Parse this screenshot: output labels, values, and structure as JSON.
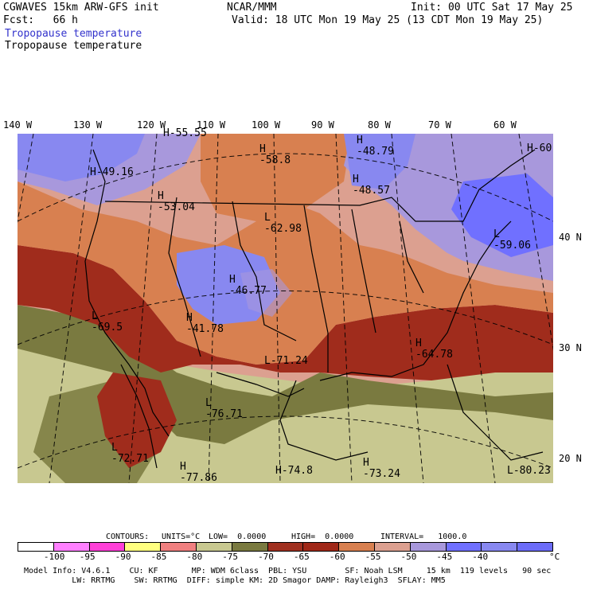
{
  "header": {
    "model": "CGWAVES 15km ARW-GFS init",
    "fcst": "Fcst:   66 h",
    "source": "NCAR/MMM",
    "init": "Init: 00 UTC Sat 17 May 25",
    "valid": "Valid: 18 UTC Mon 19 May 25 (13 CDT Mon 19 May 25)",
    "field_title_1": "Tropopause temperature",
    "field_title_2": "Tropopause temperature"
  },
  "map": {
    "lon_labels": [
      "140 W",
      "130 W",
      "120 W",
      "110 W",
      "100 W",
      "90 W",
      "80 W",
      "70 W",
      "60 W"
    ],
    "lat_labels": [
      "40 N",
      "30 N",
      "20 N"
    ],
    "highs_lows": [
      {
        "type": "H",
        "value": "-55.55"
      },
      {
        "type": "H",
        "value": "-58.8"
      },
      {
        "type": "H",
        "value": "-48.79"
      },
      {
        "type": "H",
        "value": "-48.57"
      },
      {
        "type": "H",
        "value": "-60"
      },
      {
        "type": "H",
        "value": "-49.16"
      },
      {
        "type": "H",
        "value": "-53.04"
      },
      {
        "type": "L",
        "value": "-62.98"
      },
      {
        "type": "L",
        "value": "-59.06"
      },
      {
        "type": "H",
        "value": "-46.77"
      },
      {
        "type": "L",
        "value": "-69.5"
      },
      {
        "type": "H",
        "value": "-41.78"
      },
      {
        "type": "L",
        "value": "-71.24"
      },
      {
        "type": "H",
        "value": "-64.78"
      },
      {
        "type": "L",
        "value": "-76.71"
      },
      {
        "type": "L",
        "value": "-72.71"
      },
      {
        "type": "H",
        "value": "-77.86"
      },
      {
        "type": "H",
        "value": "-74.8"
      },
      {
        "type": "H",
        "value": "-73.24"
      },
      {
        "type": "L",
        "value": "-80.23"
      }
    ]
  },
  "contours_info": {
    "contours": "CONTOURS:",
    "units": "UNITS=°C",
    "low": "LOW=  0.0000",
    "high": "HIGH=  0.0000",
    "interval": "INTERVAL=   1000.0"
  },
  "legend": {
    "colors": [
      "#ffffff",
      "#ff80ff",
      "#ff40d8",
      "#ffff80",
      "#f08080",
      "#c8c890",
      "#7a7a40",
      "#a03020",
      "#a02818",
      "#d88050",
      "#dca090",
      "#a898dc",
      "#7070ff",
      "#8888f0",
      "#6c6cf8"
    ],
    "ticks": [
      "-100",
      "-95",
      "-90",
      "-85",
      "-80",
      "-75",
      "-70",
      "-65",
      "-60",
      "-55",
      "-50",
      "-45",
      "-40"
    ],
    "unit": "°C"
  },
  "footer": {
    "line1": "Model Info: V4.6.1    CU: KF       MP: WDM 6class  PBL: YSU        SF: Noah LSM     15 km  119 levels   90 sec",
    "line2": "          LW: RRTMG    SW: RRTMG  DIFF: simple KM: 2D Smagor DAMP: Rayleigh3  SFLAY: MM5"
  }
}
